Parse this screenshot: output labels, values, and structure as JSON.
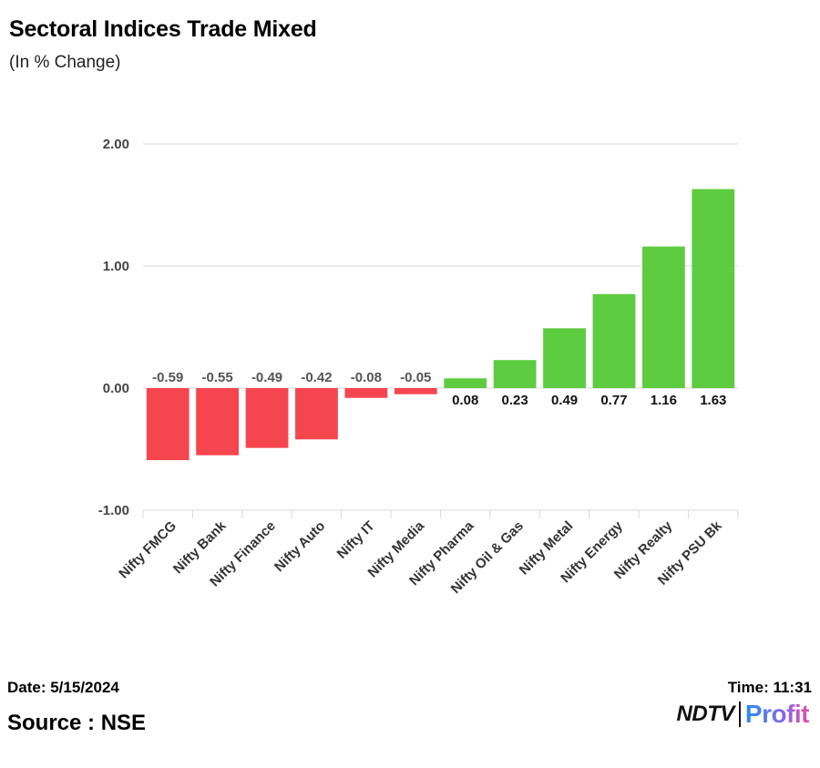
{
  "header": {
    "title": "Sectoral Indices Trade Mixed",
    "subtitle": "(In % Change)"
  },
  "footer": {
    "date": "Date: 5/15/2024",
    "time": "Time: 11:31",
    "source": "Source : NSE",
    "logo_primary": "NDTV",
    "logo_secondary": "Profit"
  },
  "colors": {
    "negative": "#f5454e",
    "positive": "#5ecc40",
    "grid": "#d9d9d9",
    "negative_label": "#555555",
    "positive_label": "#111111"
  },
  "chart_data": {
    "type": "bar",
    "title": "Sectoral Indices Trade Mixed",
    "subtitle": "(In % Change)",
    "xlabel": "",
    "ylabel": "",
    "ylim": [
      -1,
      2
    ],
    "yticks": [
      2,
      1,
      0,
      -1
    ],
    "ytick_labels": [
      "2.00",
      "1.00",
      "0.00",
      "-1.00"
    ],
    "grid": true,
    "categories": [
      "Nifty FMCG",
      "Nifty Bank",
      "Nifty Finance",
      "Nifty Auto",
      "Nifty IT",
      "Nifty Media",
      "Nifty Pharma",
      "Nifty Oil & Gas",
      "Nifty Metal",
      "Nifty Energy",
      "Nifty Realty",
      "Nifty PSU Bk"
    ],
    "values": [
      -0.59,
      -0.55,
      -0.49,
      -0.42,
      -0.08,
      -0.05,
      0.08,
      0.23,
      0.49,
      0.77,
      1.16,
      1.63
    ],
    "value_labels": [
      "-0.59",
      "-0.55",
      "-0.49",
      "-0.42",
      "-0.08",
      "-0.05",
      "0.08",
      "0.23",
      "0.49",
      "0.77",
      "1.16",
      "1.63"
    ]
  }
}
